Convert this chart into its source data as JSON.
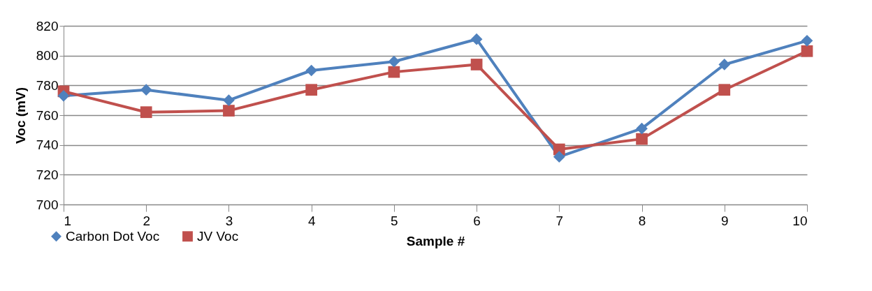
{
  "chart_data": {
    "type": "line",
    "xlabel": "Sample #",
    "ylabel": "Voc (mV)",
    "x": [
      1,
      2,
      3,
      4,
      5,
      6,
      7,
      8,
      9,
      10
    ],
    "xlim": [
      1,
      10
    ],
    "xticks": [
      1,
      2,
      3,
      4,
      5,
      6,
      7,
      8,
      9,
      10
    ],
    "ylim": [
      700,
      820
    ],
    "yticks": [
      700,
      720,
      740,
      760,
      780,
      800,
      820
    ],
    "grid": "y",
    "legend": "bottom left",
    "line_style": "solid",
    "series": [
      {
        "name": "Carbon Dot Voc",
        "color": "#4f81bd",
        "marker": "diamond",
        "values": [
          773,
          777,
          770,
          790,
          796,
          811,
          732,
          751,
          794,
          810
        ]
      },
      {
        "name": "JV Voc",
        "color": "#c0504d",
        "marker": "square",
        "values": [
          776,
          762,
          763,
          777,
          789,
          794,
          737,
          744,
          777,
          803
        ]
      }
    ]
  }
}
